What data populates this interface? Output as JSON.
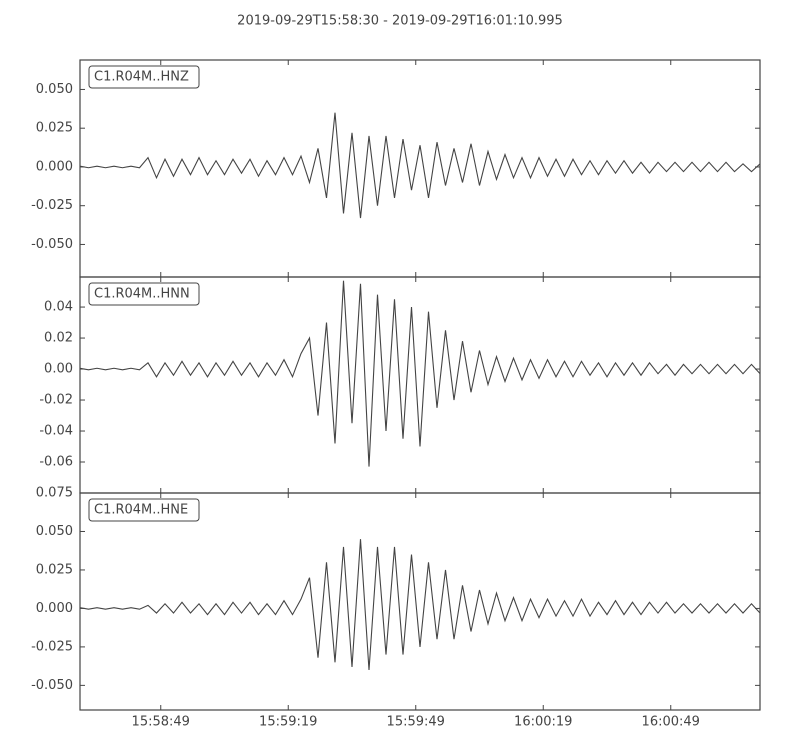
{
  "chart_data": [
    {
      "type": "line",
      "title": "2019-09-29T15:58:30  -  2019-09-29T16:01:10.995",
      "x": [
        0,
        2,
        4,
        6,
        8,
        10,
        12,
        14,
        16,
        18,
        20,
        22,
        24,
        26,
        28,
        30,
        32,
        34,
        36,
        38,
        40,
        42,
        44,
        46,
        48,
        50,
        52,
        54,
        56,
        58,
        60,
        62,
        64,
        66,
        68,
        70,
        72,
        74,
        76,
        78,
        80,
        82,
        84,
        86,
        88,
        90,
        92,
        94,
        96,
        98,
        100,
        102,
        104,
        106,
        108,
        110,
        112,
        114,
        116,
        118,
        120,
        122,
        124,
        126,
        128,
        130,
        132,
        134,
        136,
        138,
        140,
        142,
        144,
        146,
        148,
        150,
        152,
        154,
        156,
        158,
        160
      ],
      "series": [
        {
          "name": "C1.R04M..HNZ",
          "color": "#444444",
          "values": [
            0.0005,
            -0.0005,
            0.0005,
            -0.0005,
            0.0005,
            -0.0005,
            0.0005,
            -0.0005,
            0.006,
            -0.007,
            0.005,
            -0.006,
            0.005,
            -0.005,
            0.006,
            -0.005,
            0.004,
            -0.005,
            0.005,
            -0.004,
            0.005,
            -0.006,
            0.004,
            -0.005,
            0.006,
            -0.005,
            0.007,
            -0.01,
            0.012,
            -0.02,
            0.035,
            -0.03,
            0.022,
            -0.033,
            0.02,
            -0.025,
            0.02,
            -0.02,
            0.018,
            -0.015,
            0.014,
            -0.02,
            0.016,
            -0.012,
            0.012,
            -0.01,
            0.015,
            -0.012,
            0.01,
            -0.008,
            0.008,
            -0.007,
            0.006,
            -0.007,
            0.006,
            -0.006,
            0.005,
            -0.006,
            0.005,
            -0.005,
            0.004,
            -0.005,
            0.004,
            -0.004,
            0.004,
            -0.004,
            0.003,
            -0.004,
            0.003,
            -0.003,
            0.003,
            -0.003,
            0.003,
            -0.003,
            0.003,
            -0.003,
            0.003,
            -0.003,
            0.002,
            -0.003,
            0.002
          ]
        }
      ],
      "xlim": [
        0,
        160
      ],
      "ylim": [
        -0.071,
        0.069
      ],
      "yticks": [
        {
          "value": 0.05,
          "label": "0.050"
        },
        {
          "value": 0.025,
          "label": "0.025"
        },
        {
          "value": 0,
          "label": "0.000"
        },
        {
          "value": -0.025,
          "label": "-0.025"
        },
        {
          "value": -0.05,
          "label": "-0.050"
        }
      ]
    },
    {
      "type": "line",
      "x": [
        0,
        2,
        4,
        6,
        8,
        10,
        12,
        14,
        16,
        18,
        20,
        22,
        24,
        26,
        28,
        30,
        32,
        34,
        36,
        38,
        40,
        42,
        44,
        46,
        48,
        50,
        52,
        54,
        56,
        58,
        60,
        62,
        64,
        66,
        68,
        70,
        72,
        74,
        76,
        78,
        80,
        82,
        84,
        86,
        88,
        90,
        92,
        94,
        96,
        98,
        100,
        102,
        104,
        106,
        108,
        110,
        112,
        114,
        116,
        118,
        120,
        122,
        124,
        126,
        128,
        130,
        132,
        134,
        136,
        138,
        140,
        142,
        144,
        146,
        148,
        150,
        152,
        154,
        156,
        158,
        160
      ],
      "series": [
        {
          "name": "C1.R04M..HNN",
          "color": "#444444",
          "values": [
            0.0005,
            -0.0005,
            0.0005,
            -0.0005,
            0.0005,
            -0.0005,
            0.0005,
            -0.0005,
            0.004,
            -0.005,
            0.004,
            -0.004,
            0.005,
            -0.004,
            0.004,
            -0.005,
            0.004,
            -0.004,
            0.005,
            -0.004,
            0.004,
            -0.005,
            0.004,
            -0.004,
            0.006,
            -0.005,
            0.01,
            0.02,
            -0.03,
            0.03,
            -0.048,
            0.057,
            -0.035,
            0.055,
            -0.063,
            0.048,
            -0.04,
            0.045,
            -0.045,
            0.04,
            -0.05,
            0.037,
            -0.025,
            0.025,
            -0.02,
            0.018,
            -0.015,
            0.012,
            -0.01,
            0.008,
            -0.008,
            0.007,
            -0.007,
            0.006,
            -0.006,
            0.006,
            -0.005,
            0.005,
            -0.005,
            0.005,
            -0.004,
            0.004,
            -0.005,
            0.004,
            -0.004,
            0.004,
            -0.004,
            0.004,
            -0.003,
            0.003,
            -0.004,
            0.003,
            -0.003,
            0.003,
            -0.003,
            0.003,
            -0.003,
            0.003,
            -0.003,
            0.003,
            -0.003
          ]
        }
      ],
      "xlim": [
        0,
        160
      ],
      "ylim": [
        -0.08,
        0.0594
      ],
      "yticks": [
        0.04,
        0.02,
        {
          "value": 0,
          "label": "0.00"
        },
        -0.02,
        -0.04,
        -0.06
      ]
    },
    {
      "type": "line",
      "x": [
        0,
        2,
        4,
        6,
        8,
        10,
        12,
        14,
        16,
        18,
        20,
        22,
        24,
        26,
        28,
        30,
        32,
        34,
        36,
        38,
        40,
        42,
        44,
        46,
        48,
        50,
        52,
        54,
        56,
        58,
        60,
        62,
        64,
        66,
        68,
        70,
        72,
        74,
        76,
        78,
        80,
        82,
        84,
        86,
        88,
        90,
        92,
        94,
        96,
        98,
        100,
        102,
        104,
        106,
        108,
        110,
        112,
        114,
        116,
        118,
        120,
        122,
        124,
        126,
        128,
        130,
        132,
        134,
        136,
        138,
        140,
        142,
        144,
        146,
        148,
        150,
        152,
        154,
        156,
        158,
        160
      ],
      "series": [
        {
          "name": "C1.R04M..HNE",
          "color": "#444444",
          "values": [
            0.0005,
            -0.0005,
            0.0005,
            -0.0005,
            0.0005,
            -0.0005,
            0.0005,
            -0.0005,
            0.002,
            -0.003,
            0.003,
            -0.003,
            0.004,
            -0.003,
            0.003,
            -0.004,
            0.003,
            -0.004,
            0.004,
            -0.003,
            0.004,
            -0.004,
            0.003,
            -0.004,
            0.005,
            -0.004,
            0.006,
            0.02,
            -0.032,
            0.03,
            -0.035,
            0.04,
            -0.038,
            0.045,
            -0.04,
            0.04,
            -0.03,
            0.04,
            -0.03,
            0.035,
            -0.025,
            0.03,
            -0.02,
            0.025,
            -0.02,
            0.015,
            -0.015,
            0.012,
            -0.01,
            0.01,
            -0.008,
            0.007,
            -0.008,
            0.006,
            -0.006,
            0.006,
            -0.005,
            0.005,
            -0.005,
            0.006,
            -0.005,
            0.004,
            -0.004,
            0.005,
            -0.004,
            0.004,
            -0.004,
            0.004,
            -0.003,
            0.004,
            -0.003,
            0.003,
            -0.003,
            0.003,
            -0.003,
            0.003,
            -0.003,
            0.003,
            -0.003,
            0.003,
            -0.003
          ]
        }
      ],
      "xlim": [
        0,
        160
      ],
      "ylim": [
        -0.066,
        0.075
      ],
      "xticks": [
        {
          "value": 19,
          "label": "15:58:49"
        },
        {
          "value": 49,
          "label": "15:59:19"
        },
        {
          "value": 79,
          "label": "15:59:49"
        },
        {
          "value": 109,
          "label": "16:00:19"
        },
        {
          "value": 139,
          "label": "16:00:49"
        }
      ],
      "yticks": [
        {
          "value": 0.075,
          "label": "0.075"
        },
        {
          "value": 0.05,
          "label": "0.050"
        },
        {
          "value": 0.025,
          "label": "0.025"
        },
        {
          "value": 0,
          "label": "0.000"
        },
        {
          "value": -0.025,
          "label": "-0.025"
        },
        {
          "value": -0.05,
          "label": "-0.050"
        }
      ]
    }
  ]
}
